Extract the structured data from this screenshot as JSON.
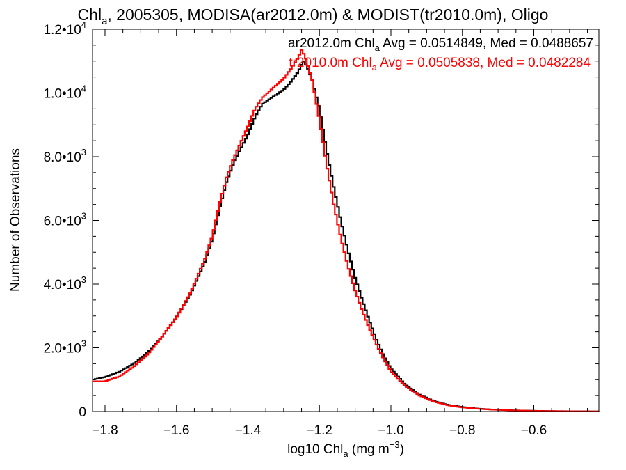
{
  "chart_data": {
    "type": "line",
    "title": {
      "pre": "Chl",
      "sub": "a",
      "post": ", 2005305, MODISA(ar2012.0m) & MODIST(tr2010.0m), Oligo"
    },
    "xlabel": {
      "pre": "log10 Chl",
      "sub": "a",
      "mid": " (mg m",
      "sup": "−3",
      "post": ")"
    },
    "ylabel": "Number of Observations",
    "xlim": [
      -1.835,
      -0.418
    ],
    "ylim": [
      0,
      12000
    ],
    "x_ticks": [
      {
        "value": -1.8,
        "label": "−1.8"
      },
      {
        "value": -1.6,
        "label": "−1.6"
      },
      {
        "value": -1.4,
        "label": "−1.4"
      },
      {
        "value": -1.2,
        "label": "−1.2"
      },
      {
        "value": -1.0,
        "label": "−1.0"
      },
      {
        "value": -0.8,
        "label": "−0.8"
      },
      {
        "value": -0.6,
        "label": "−0.6"
      }
    ],
    "y_ticks": [
      {
        "value": 0,
        "mant": "0",
        "exp": ""
      },
      {
        "value": 2000,
        "mant": "2.0•10",
        "exp": "3"
      },
      {
        "value": 4000,
        "mant": "4.0•10",
        "exp": "3"
      },
      {
        "value": 6000,
        "mant": "6.0•10",
        "exp": "3"
      },
      {
        "value": 8000,
        "mant": "8.0•10",
        "exp": "3"
      },
      {
        "value": 10000,
        "mant": "1.0•10",
        "exp": "4"
      },
      {
        "value": 12000,
        "mant": "1.2•10",
        "exp": "4"
      }
    ],
    "grid": false,
    "legend_placement": "top-right",
    "series": [
      {
        "legend": {
          "pre": "ar2012.0m Chl",
          "sub": "a",
          "post": " Avg = 0.0514849, Med = 0.0488657"
        },
        "color": "#000000",
        "points": [
          [
            -1.835,
            1000
          ],
          [
            -1.8,
            1080
          ],
          [
            -1.76,
            1250
          ],
          [
            -1.72,
            1500
          ],
          [
            -1.68,
            1850
          ],
          [
            -1.64,
            2350
          ],
          [
            -1.6,
            2950
          ],
          [
            -1.56,
            3700
          ],
          [
            -1.52,
            4700
          ],
          [
            -1.5,
            5400
          ],
          [
            -1.48,
            6350
          ],
          [
            -1.46,
            7200
          ],
          [
            -1.44,
            7800
          ],
          [
            -1.42,
            8250
          ],
          [
            -1.4,
            8700
          ],
          [
            -1.38,
            9250
          ],
          [
            -1.36,
            9650
          ],
          [
            -1.34,
            9800
          ],
          [
            -1.32,
            9950
          ],
          [
            -1.3,
            10100
          ],
          [
            -1.28,
            10350
          ],
          [
            -1.26,
            10650
          ],
          [
            -1.245,
            11000
          ],
          [
            -1.235,
            10850
          ],
          [
            -1.22,
            10400
          ],
          [
            -1.2,
            9500
          ],
          [
            -1.18,
            8200
          ],
          [
            -1.16,
            7050
          ],
          [
            -1.14,
            6000
          ],
          [
            -1.12,
            5050
          ],
          [
            -1.1,
            4200
          ],
          [
            -1.08,
            3500
          ],
          [
            -1.06,
            2850
          ],
          [
            -1.04,
            2250
          ],
          [
            -1.02,
            1750
          ],
          [
            -1.0,
            1350
          ],
          [
            -0.96,
            850
          ],
          [
            -0.92,
            530
          ],
          [
            -0.88,
            330
          ],
          [
            -0.84,
            210
          ],
          [
            -0.8,
            140
          ],
          [
            -0.76,
            95
          ],
          [
            -0.72,
            65
          ],
          [
            -0.68,
            45
          ],
          [
            -0.64,
            32
          ],
          [
            -0.6,
            22
          ],
          [
            -0.55,
            14
          ],
          [
            -0.5,
            9
          ],
          [
            -0.45,
            5
          ],
          [
            -0.418,
            4
          ]
        ]
      },
      {
        "legend": {
          "pre": "tr2010.0m Chl",
          "sub": "a",
          "post": " Avg = 0.0505838, Med = 0.0482284"
        },
        "color": "#ff0000",
        "points": [
          [
            -1.835,
            950
          ],
          [
            -1.8,
            950
          ],
          [
            -1.76,
            1100
          ],
          [
            -1.72,
            1400
          ],
          [
            -1.68,
            1800
          ],
          [
            -1.64,
            2350
          ],
          [
            -1.6,
            2950
          ],
          [
            -1.56,
            3750
          ],
          [
            -1.52,
            4800
          ],
          [
            -1.5,
            5500
          ],
          [
            -1.48,
            6500
          ],
          [
            -1.46,
            7350
          ],
          [
            -1.44,
            7950
          ],
          [
            -1.42,
            8450
          ],
          [
            -1.4,
            8950
          ],
          [
            -1.38,
            9500
          ],
          [
            -1.36,
            9850
          ],
          [
            -1.34,
            10050
          ],
          [
            -1.32,
            10250
          ],
          [
            -1.3,
            10450
          ],
          [
            -1.28,
            10750
          ],
          [
            -1.26,
            11100
          ],
          [
            -1.25,
            11350
          ],
          [
            -1.24,
            11150
          ],
          [
            -1.22,
            10400
          ],
          [
            -1.2,
            9150
          ],
          [
            -1.18,
            7750
          ],
          [
            -1.16,
            6500
          ],
          [
            -1.14,
            5450
          ],
          [
            -1.12,
            4550
          ],
          [
            -1.1,
            3800
          ],
          [
            -1.08,
            3150
          ],
          [
            -1.06,
            2600
          ],
          [
            -1.04,
            2100
          ],
          [
            -1.02,
            1650
          ],
          [
            -1.0,
            1250
          ],
          [
            -0.96,
            800
          ],
          [
            -0.92,
            500
          ],
          [
            -0.88,
            310
          ],
          [
            -0.84,
            195
          ],
          [
            -0.8,
            130
          ],
          [
            -0.76,
            90
          ],
          [
            -0.72,
            62
          ],
          [
            -0.68,
            43
          ],
          [
            -0.64,
            30
          ],
          [
            -0.6,
            21
          ],
          [
            -0.55,
            13
          ],
          [
            -0.5,
            8
          ],
          [
            -0.45,
            5
          ],
          [
            -0.418,
            4
          ]
        ]
      }
    ]
  }
}
